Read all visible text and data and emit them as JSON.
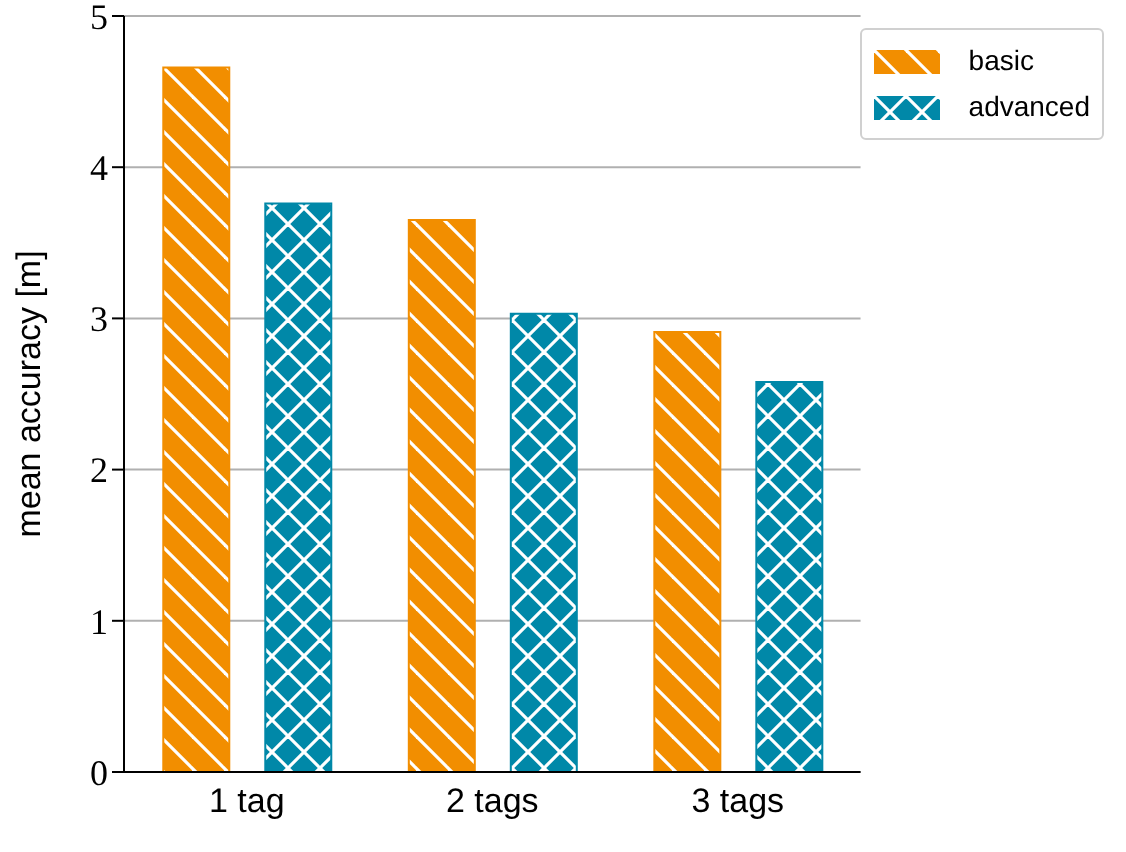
{
  "chart_data": {
    "type": "bar",
    "ylabel": "mean accuracy [m]",
    "categories": [
      "1 tag",
      "2 tags",
      "3 tags"
    ],
    "series": [
      {
        "name": "basic",
        "color": "#f28e00",
        "values": [
          4.66,
          3.65,
          2.91
        ]
      },
      {
        "name": "advanced",
        "color": "#0088a8",
        "values": [
          3.76,
          3.03,
          2.58
        ]
      }
    ],
    "ylim": [
      0,
      5
    ],
    "yticks": [
      0,
      1,
      2,
      3,
      4,
      5
    ],
    "grid": "y",
    "legend": "top right"
  }
}
